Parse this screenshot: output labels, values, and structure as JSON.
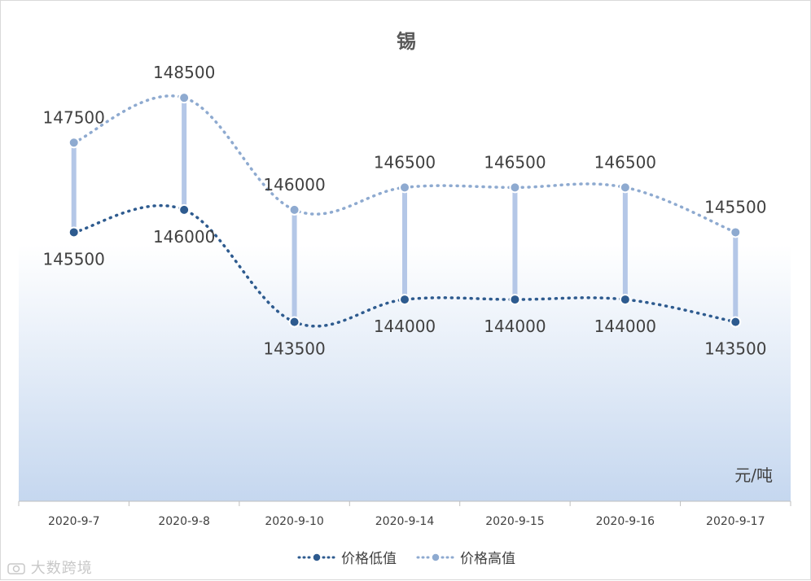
{
  "chart_data": {
    "type": "line",
    "title": "锡",
    "unit_label": "元/吨",
    "categories": [
      "2020-9-7",
      "2020-9-8",
      "2020-9-10",
      "2020-9-14",
      "2020-9-15",
      "2020-9-16",
      "2020-9-17"
    ],
    "series": [
      {
        "name": "价格低值",
        "values": [
          145500,
          146000,
          143500,
          144000,
          144000,
          144000,
          143500
        ],
        "color": "#2e5b8f"
      },
      {
        "name": "价格高值",
        "values": [
          147500,
          148500,
          146000,
          146500,
          146500,
          146500,
          145500
        ],
        "color": "#8eaad0"
      }
    ],
    "ylim": [
      139500,
      150300
    ],
    "high_low_lines": true,
    "legend_position": "bottom",
    "grid": false,
    "background_gradient": [
      "#ffffff",
      "#c5d7ef"
    ]
  },
  "watermark": "大数跨境",
  "watermark_icon": "camera-outline-icon"
}
